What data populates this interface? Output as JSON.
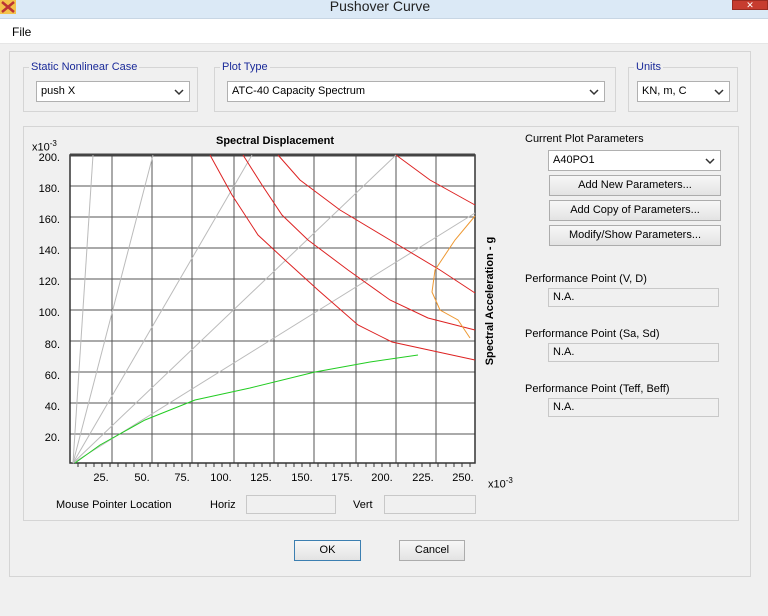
{
  "window": {
    "title": "Pushover Curve"
  },
  "menu": {
    "file": "File"
  },
  "case_group": {
    "label": "Static Nonlinear Case",
    "value": "push X"
  },
  "plot_type_group": {
    "label": "Plot Type",
    "value": "ATC-40 Capacity Spectrum"
  },
  "units_group": {
    "label": "Units",
    "value": "KN, m, C"
  },
  "plot": {
    "top_label": "Spectral Displacement",
    "side_label": "Spectral Acceleration - g",
    "y_multiplier": "x10",
    "y_exp": "-3",
    "x_multiplier": "x10",
    "x_exp": "-3",
    "y_ticks": [
      "200.",
      "180.",
      "160.",
      "140.",
      "120.",
      "100.",
      "80.",
      "60.",
      "40.",
      "20."
    ],
    "x_ticks": [
      "25.",
      "50.",
      "75.",
      "100.",
      "125.",
      "150.",
      "175.",
      "200.",
      "225.",
      "250."
    ],
    "colors": {
      "capacity": "#22cc22",
      "demand": "#dd2222",
      "performance": "#ee9933",
      "radial": "#bbbbbb"
    }
  },
  "mouse": {
    "label": "Mouse Pointer Location",
    "horiz_label": "Horiz",
    "vert_label": "Vert",
    "horiz_value": "",
    "vert_value": ""
  },
  "params": {
    "label": "Current Plot Parameters",
    "value": "A40PO1",
    "add_new": "Add New Parameters...",
    "add_copy": "Add Copy of Parameters...",
    "modify": "Modify/Show Parameters..."
  },
  "perf_vd": {
    "label": "Performance Point (V, D)",
    "value": "N.A."
  },
  "perf_sasd": {
    "label": "Performance Point (Sa, Sd)",
    "value": "N.A."
  },
  "perf_teff": {
    "label": "Performance Point (Teff, Beff)",
    "value": "N.A."
  },
  "buttons": {
    "ok": "OK",
    "cancel": "Cancel"
  }
}
